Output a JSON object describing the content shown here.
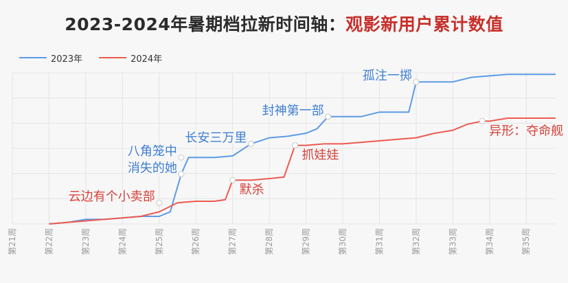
{
  "title": {
    "main": "2023-2024年暑期档拉新时间轴：",
    "accent": "观影新用户累计数值"
  },
  "colors": {
    "series_2023": "#5b9be6",
    "series_2024": "#ec5a50",
    "label_2023": "#3f7fd2",
    "label_2024": "#d64139",
    "grid": "#e4e4e4",
    "title_accent": "#c7302b"
  },
  "chart_data": {
    "type": "line",
    "x_ticks": [
      "第21周",
      "第22周",
      "第23周",
      "第24周",
      "第25周",
      "第26周",
      "第27周",
      "第28周",
      "第29周",
      "第30周",
      "第31周",
      "第32周",
      "第33周",
      "第34周",
      "第35周"
    ],
    "xlim": [
      21,
      35.8
    ],
    "ylim": [
      0,
      100
    ],
    "grid": true,
    "legend_position": "top-left",
    "series": [
      {
        "name": "2023年",
        "points": [
          [
            22,
            0
          ],
          [
            22.5,
            1
          ],
          [
            23,
            3
          ],
          [
            23.5,
            3
          ],
          [
            24,
            4
          ],
          [
            24.5,
            5
          ],
          [
            25,
            5
          ],
          [
            25.3,
            8
          ],
          [
            25.6,
            33
          ],
          [
            25.8,
            44
          ],
          [
            26,
            44
          ],
          [
            26.5,
            44
          ],
          [
            27,
            45
          ],
          [
            27.5,
            53
          ],
          [
            28,
            57
          ],
          [
            28.5,
            58
          ],
          [
            29,
            60
          ],
          [
            29.3,
            63
          ],
          [
            29.6,
            71
          ],
          [
            30,
            71
          ],
          [
            30.5,
            71
          ],
          [
            31,
            74
          ],
          [
            31.5,
            74
          ],
          [
            31.8,
            74
          ],
          [
            32,
            94
          ],
          [
            32.5,
            94
          ],
          [
            33,
            94
          ],
          [
            33.5,
            97
          ],
          [
            34,
            98
          ],
          [
            34.5,
            99
          ],
          [
            35,
            99
          ],
          [
            35.8,
            99
          ]
        ]
      },
      {
        "name": "2024年",
        "points": [
          [
            22,
            0
          ],
          [
            22.5,
            1
          ],
          [
            23,
            2
          ],
          [
            23.5,
            3
          ],
          [
            24,
            4
          ],
          [
            24.5,
            5
          ],
          [
            25,
            8
          ],
          [
            25.5,
            14
          ],
          [
            26,
            15
          ],
          [
            26.5,
            15
          ],
          [
            26.8,
            16
          ],
          [
            27,
            29
          ],
          [
            27.5,
            29
          ],
          [
            28,
            30
          ],
          [
            28.4,
            31
          ],
          [
            28.7,
            52
          ],
          [
            29,
            52
          ],
          [
            29.5,
            53
          ],
          [
            30,
            53
          ],
          [
            30.5,
            54
          ],
          [
            31,
            55
          ],
          [
            31.5,
            56
          ],
          [
            32,
            57
          ],
          [
            32.5,
            60
          ],
          [
            33,
            62
          ],
          [
            33.4,
            66
          ],
          [
            33.8,
            68
          ],
          [
            34,
            68
          ],
          [
            34.5,
            70
          ],
          [
            35,
            70
          ],
          [
            35.8,
            70
          ]
        ]
      }
    ],
    "annotations": [
      {
        "text": "云边有个小卖部",
        "series": 1,
        "x": 25,
        "y": 14,
        "align": "end"
      },
      {
        "text": "消失的她",
        "series": 0,
        "x": 25.6,
        "y": 33,
        "align": "end"
      },
      {
        "text": "八角笼中",
        "series": 0,
        "x": 25.6,
        "y": 44,
        "align": "end"
      },
      {
        "text": "长安三万里",
        "series": 0,
        "x": 27.5,
        "y": 53,
        "align": "end"
      },
      {
        "text": "封神第一部",
        "series": 0,
        "x": 29.6,
        "y": 71,
        "align": "end"
      },
      {
        "text": "孤注一掷",
        "series": 0,
        "x": 32,
        "y": 94,
        "align": "end"
      },
      {
        "text": "默杀",
        "series": 1,
        "x": 27,
        "y": 29,
        "align": "start"
      },
      {
        "text": "抓娃娃",
        "series": 1,
        "x": 28.7,
        "y": 52,
        "align": "start"
      },
      {
        "text": "异形：夺命舰",
        "series": 1,
        "x": 33.8,
        "y": 68,
        "align": "start"
      }
    ]
  }
}
